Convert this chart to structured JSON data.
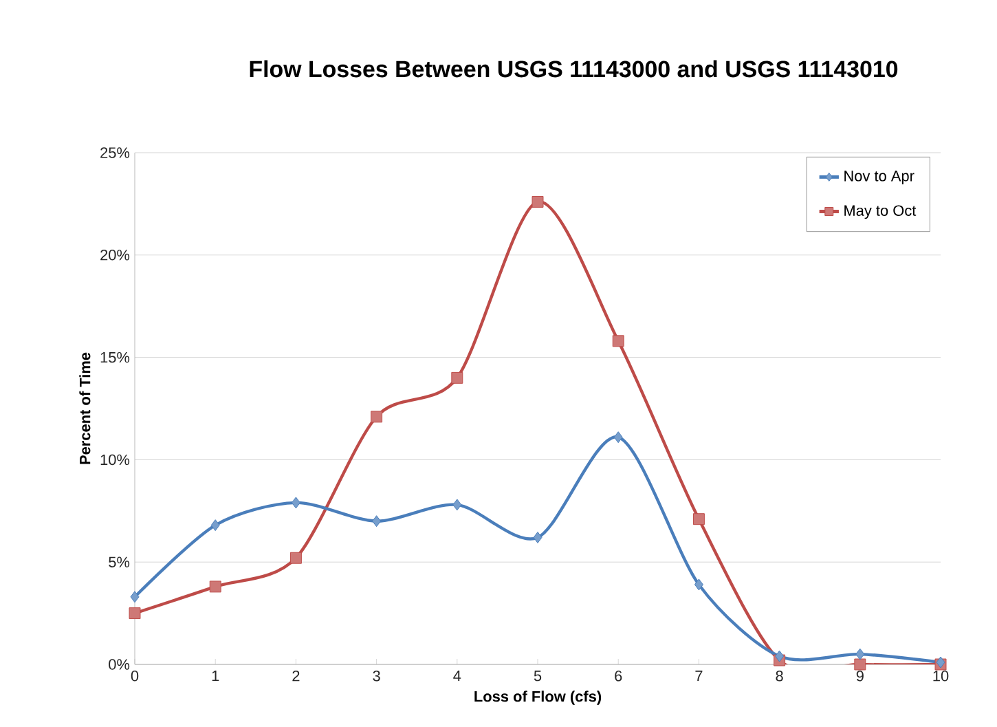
{
  "chart_data": {
    "type": "line",
    "title": "Flow Losses Between USGS 11143000 and USGS 11143010",
    "xlabel": "Loss of Flow (cfs)",
    "ylabel": "Percent of Time",
    "x": [
      0,
      1,
      2,
      3,
      4,
      5,
      6,
      7,
      8,
      9,
      10
    ],
    "series": [
      {
        "name": "Nov to Apr",
        "color": "#4a7ebb",
        "marker": "diamond",
        "values": [
          3.3,
          6.8,
          7.9,
          7.0,
          7.8,
          6.2,
          11.1,
          3.9,
          0.4,
          0.5,
          0.1
        ]
      },
      {
        "name": "May to Oct",
        "color": "#be4b48",
        "marker": "square",
        "values": [
          2.5,
          3.8,
          5.2,
          12.1,
          14.0,
          22.6,
          15.8,
          7.1,
          0.2,
          0.0,
          0.0
        ]
      }
    ],
    "xlim": [
      0,
      10
    ],
    "xticks": [
      0,
      1,
      2,
      3,
      4,
      5,
      6,
      7,
      8,
      9,
      10
    ],
    "ylim": [
      0,
      25
    ],
    "yticks": [
      {
        "value": 0,
        "label": "0%"
      },
      {
        "value": 5,
        "label": "5%"
      },
      {
        "value": 10,
        "label": "10%"
      },
      {
        "value": 15,
        "label": "15%"
      },
      {
        "value": 20,
        "label": "20%"
      },
      {
        "value": 25,
        "label": "25%"
      }
    ],
    "grid": "y",
    "legend": "top right",
    "line_style": "solid"
  }
}
